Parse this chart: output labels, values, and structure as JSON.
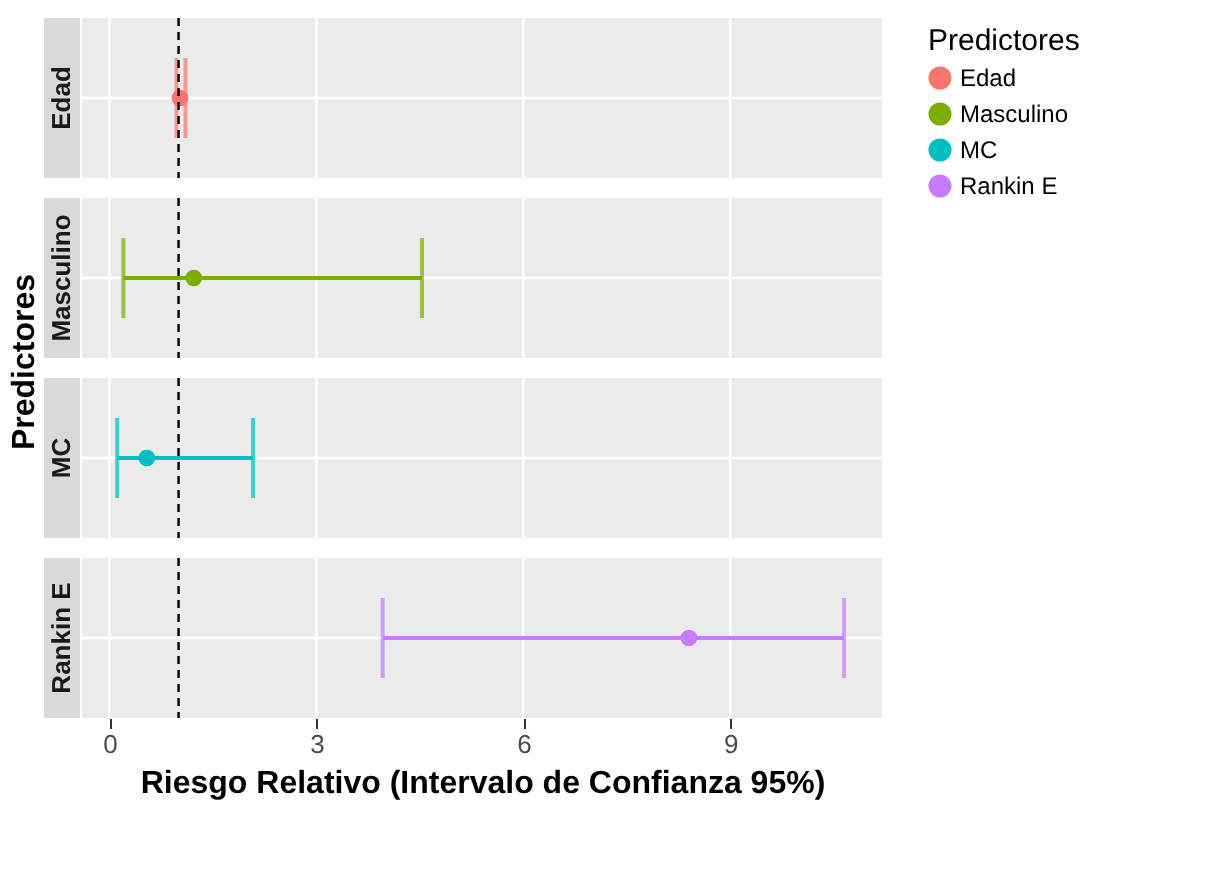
{
  "chart_data": [
    {
      "type": "scatter",
      "orientation": "horizontal",
      "categories": [
        "Edad"
      ],
      "series": [
        {
          "name": "Edad",
          "color": "#f8766d",
          "values": [
            1.02
          ],
          "errors": [
            [
              0.97,
              1.1
            ]
          ]
        }
      ],
      "ylabel": "Predictores",
      "legend_title": "Predictores",
      "legend": "right",
      "xlim": [
        -0.4,
        11.2
      ],
      "xticks": [
        0,
        3,
        6,
        9
      ],
      "tick_labels": "y",
      "bands": [
        {
          "axis": "x",
          "from": -0.4,
          "to": 11.2,
          "label": null,
          "color": "#ebebeb"
        }
      ],
      "ref_lines": [
        {
          "axis": "x",
          "value": 1,
          "label": null,
          "color": "#000000",
          "line_style": "dashed"
        }
      ],
      "grid": true,
      "marker": "circle"
    },
    {
      "type": "scatter",
      "orientation": "horizontal",
      "categories": [
        "Masculino"
      ],
      "series": [
        {
          "name": "Masculino",
          "color": "#7cae00",
          "values": [
            1.22
          ],
          "errors": [
            [
              0.2,
              4.53
            ]
          ]
        }
      ],
      "xlim": [
        -0.4,
        11.2
      ],
      "xticks": [
        0,
        3,
        6,
        9
      ],
      "tick_labels": "y",
      "bands": [
        {
          "axis": "x",
          "from": -0.4,
          "to": 11.2,
          "label": null,
          "color": "#ebebeb"
        }
      ],
      "ref_lines": [
        {
          "axis": "x",
          "value": 1,
          "label": null,
          "color": "#000000",
          "line_style": "dashed"
        }
      ],
      "grid": true,
      "marker": "circle"
    },
    {
      "type": "scatter",
      "orientation": "horizontal",
      "categories": [
        "MC"
      ],
      "series": [
        {
          "name": "MC",
          "color": "#00bfc4",
          "values": [
            0.54
          ],
          "errors": [
            [
              0.11,
              2.08
            ]
          ]
        }
      ],
      "xlim": [
        -0.4,
        11.2
      ],
      "xticks": [
        0,
        3,
        6,
        9
      ],
      "tick_labels": "y",
      "bands": [
        {
          "axis": "x",
          "from": -0.4,
          "to": 11.2,
          "label": null,
          "color": "#ebebeb"
        }
      ],
      "ref_lines": [
        {
          "axis": "x",
          "value": 1,
          "label": null,
          "color": "#000000",
          "line_style": "dashed"
        }
      ],
      "grid": true,
      "marker": "circle"
    },
    {
      "type": "scatter",
      "orientation": "horizontal",
      "categories": [
        "Rankin E"
      ],
      "series": [
        {
          "name": "Rankin E",
          "color": "#c77cff",
          "values": [
            8.4
          ],
          "errors": [
            [
              3.96,
              10.65
            ]
          ]
        }
      ],
      "xlabel": "Riesgo Relativo (Intervalo de Confianza 95%)",
      "xlim": [
        -0.4,
        11.2
      ],
      "xticks": [
        0,
        3,
        6,
        9
      ],
      "bands": [
        {
          "axis": "x",
          "from": -0.4,
          "to": 11.2,
          "label": null,
          "color": "#ebebeb"
        }
      ],
      "ref_lines": [
        {
          "axis": "x",
          "value": 1,
          "label": null,
          "color": "#000000",
          "line_style": "dashed"
        }
      ],
      "grid": true,
      "marker": "circle"
    }
  ]
}
